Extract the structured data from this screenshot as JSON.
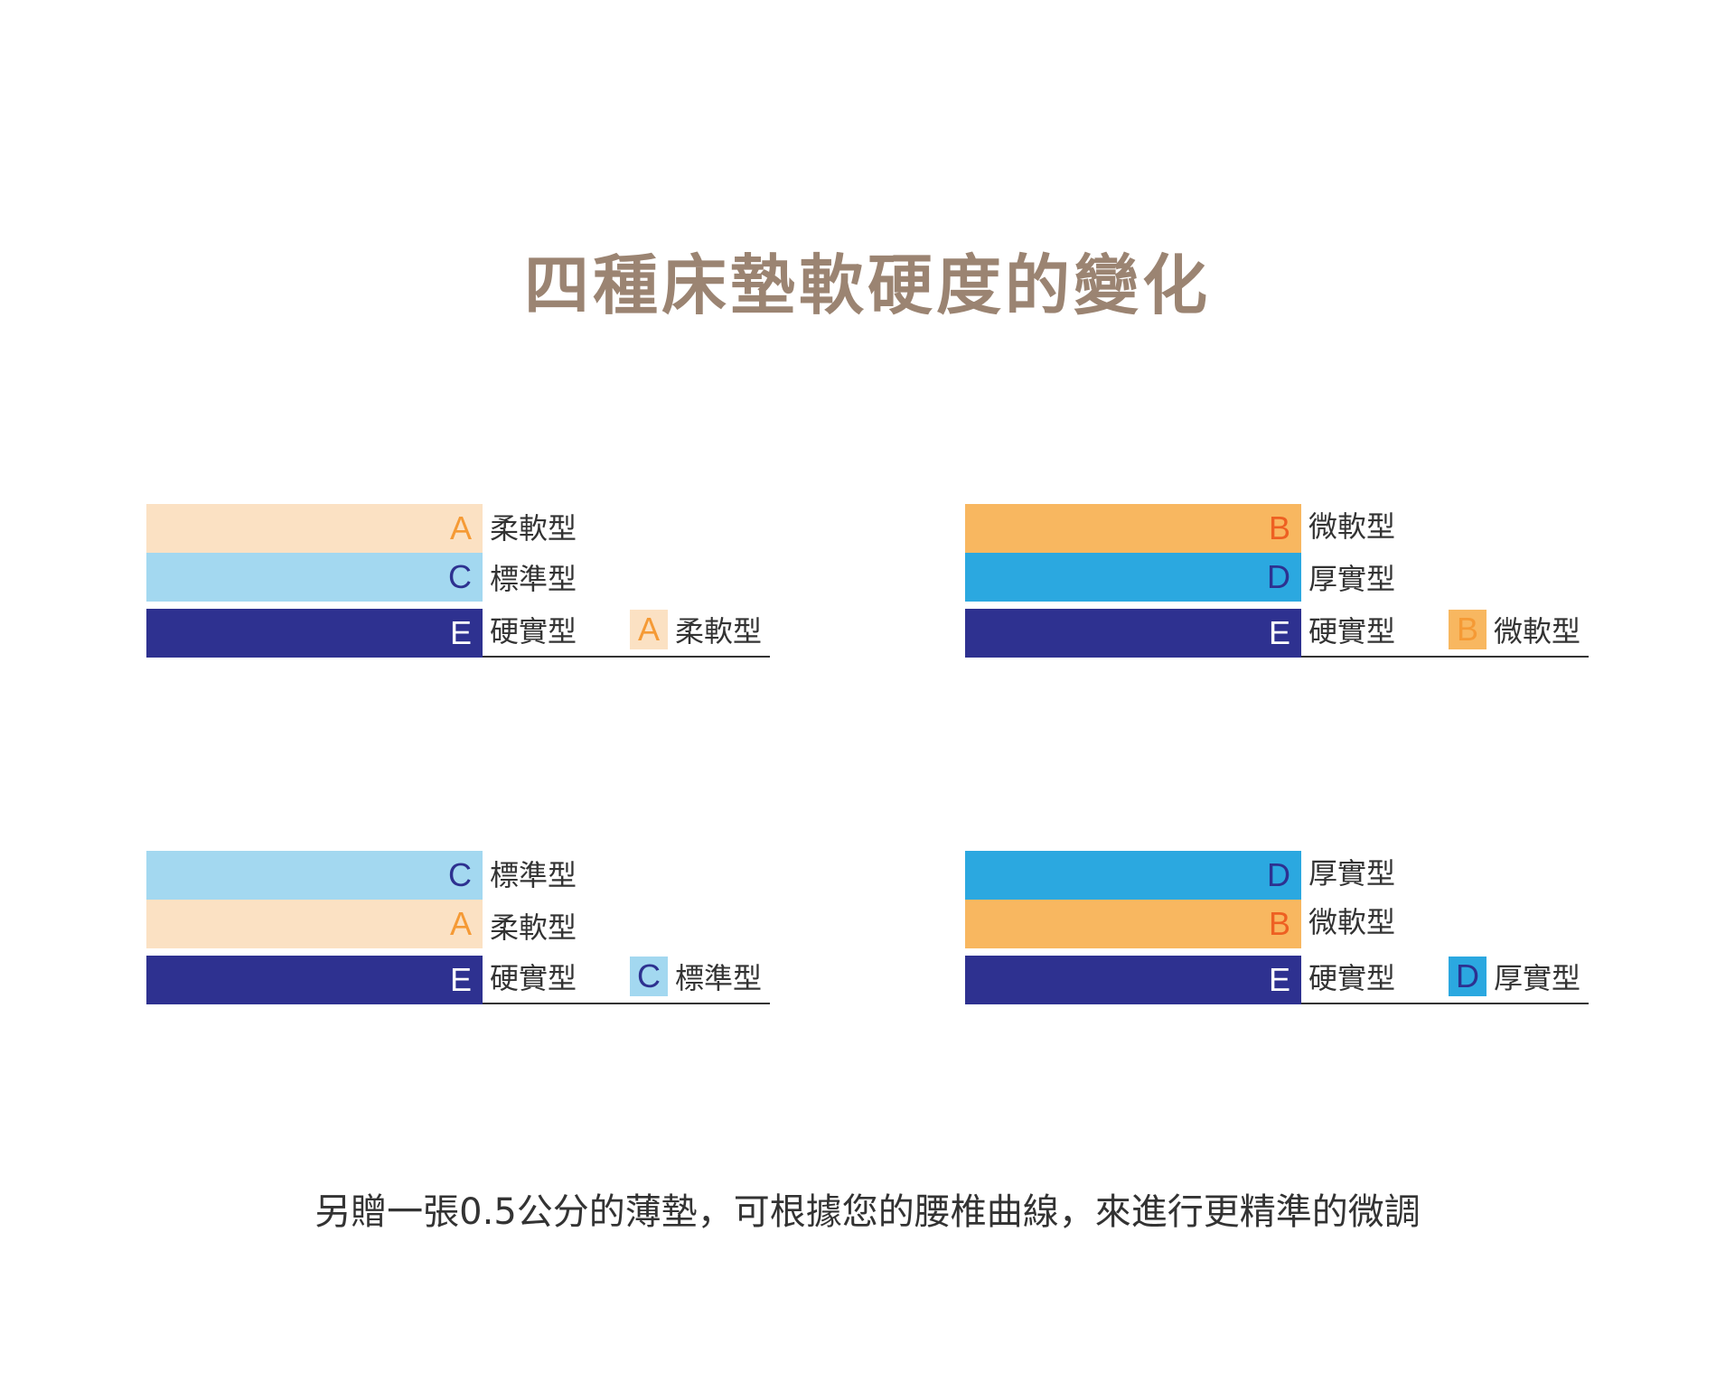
{
  "title": "四種床墊軟硬度的變化",
  "footer": "另贈一張0.5公分的薄墊，可根據您的腰椎曲線，來進行更精準的微調",
  "colors": {
    "title": "#9b8472",
    "A_fill": "#fbe1c3",
    "A_letter": "#f59a35",
    "B_fill": "#f8b760",
    "B_letter": "#ee6022",
    "C_fill": "#a3d8f0",
    "C_letter": "#2d3190",
    "D_fill": "#2ba8e0",
    "D_letter": "#2d3190",
    "E_fill": "#2e3190",
    "E_letter": "#ffffff"
  },
  "diagrams": [
    {
      "layers": [
        {
          "code": "A",
          "label": "柔軟型"
        },
        {
          "code": "C",
          "label": "標準型"
        },
        {
          "code": "E",
          "label": "硬實型"
        }
      ],
      "extra": {
        "code": "A",
        "label": "柔軟型"
      }
    },
    {
      "layers": [
        {
          "code": "B",
          "label": "微軟型"
        },
        {
          "code": "D",
          "label": "厚實型"
        },
        {
          "code": "E",
          "label": "硬實型"
        }
      ],
      "extra": {
        "code": "B",
        "label": "微軟型"
      }
    },
    {
      "layers": [
        {
          "code": "C",
          "label": "標準型"
        },
        {
          "code": "A",
          "label": "柔軟型"
        },
        {
          "code": "E",
          "label": "硬實型"
        }
      ],
      "extra": {
        "code": "C",
        "label": "標準型"
      }
    },
    {
      "layers": [
        {
          "code": "D",
          "label": "厚實型"
        },
        {
          "code": "B",
          "label": "微軟型"
        },
        {
          "code": "E",
          "label": "硬實型"
        }
      ],
      "extra": {
        "code": "D",
        "label": "厚實型"
      }
    }
  ]
}
